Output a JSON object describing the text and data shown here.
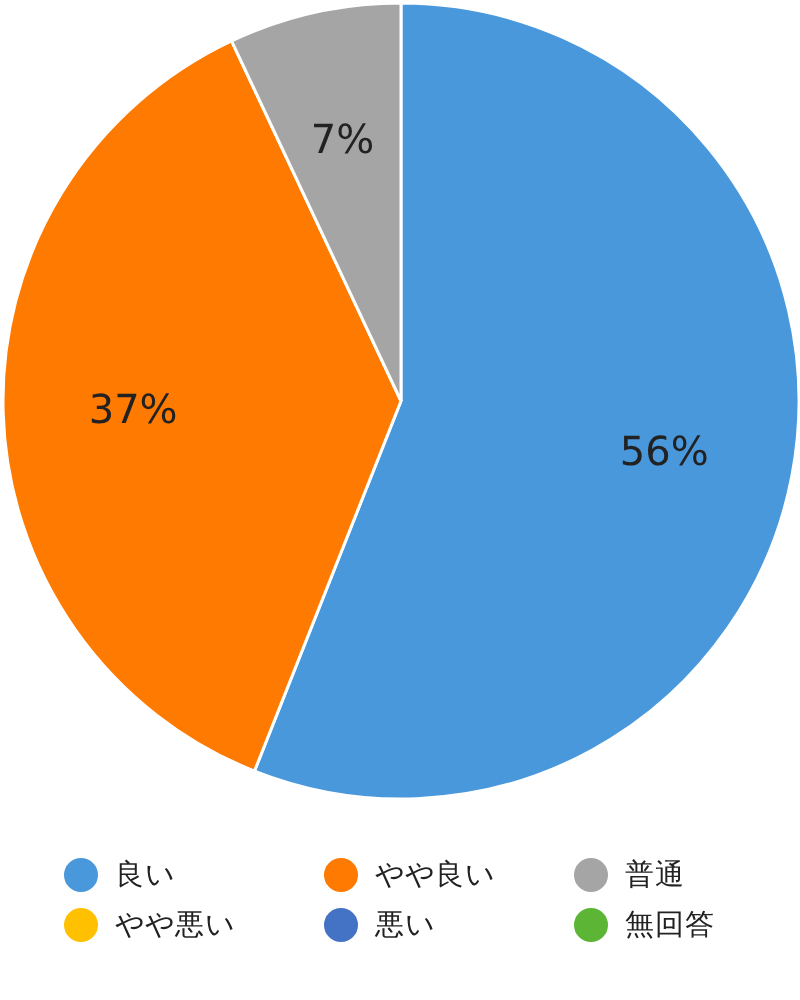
{
  "chart_data": {
    "type": "pie",
    "categories": [
      "良い",
      "やや良い",
      "普通",
      "やや悪い",
      "悪い",
      "無回答"
    ],
    "values": [
      56,
      37,
      7,
      0,
      0,
      0
    ],
    "colors": [
      "#4a98dc",
      "#ff7a00",
      "#a5a5a5",
      "#ffc000",
      "#4472c4",
      "#5cb534"
    ],
    "value_labels": [
      "56%",
      "37%",
      "7%",
      null,
      null,
      null
    ],
    "legend": "bottom"
  }
}
